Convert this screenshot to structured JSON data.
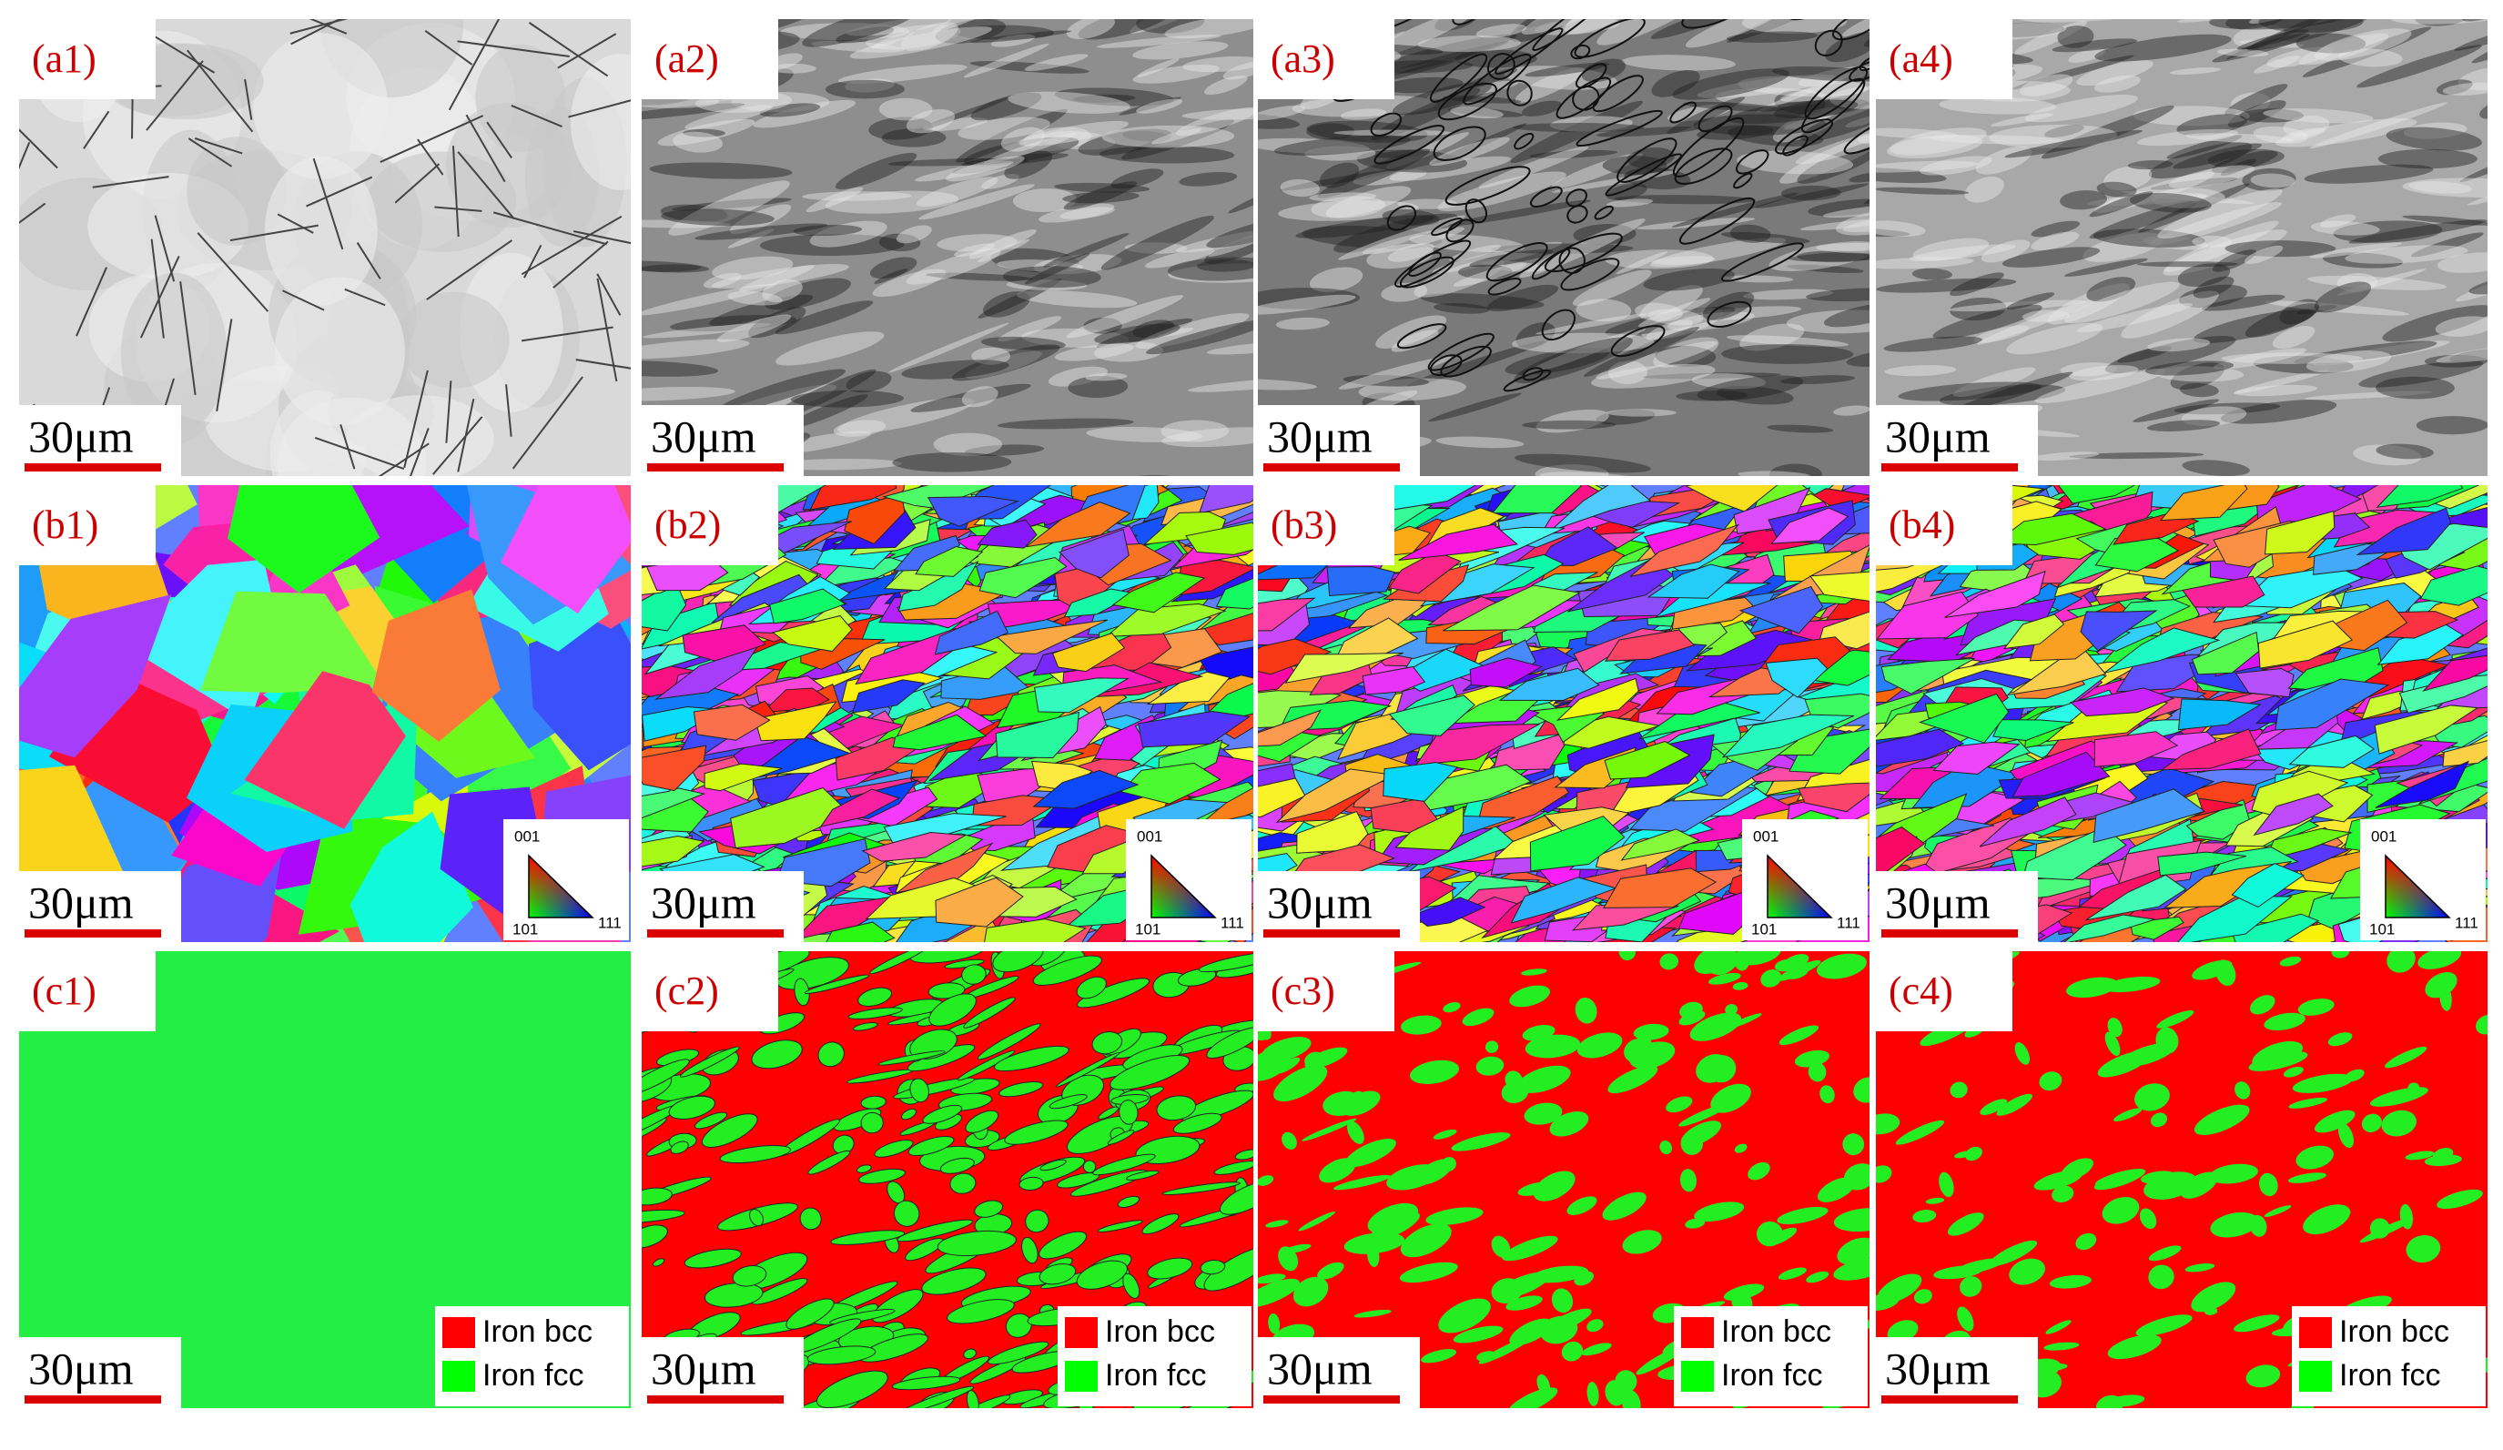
{
  "panels": [
    {
      "label": "(a1)",
      "scale_bar": "30μm"
    },
    {
      "label": "(a2)",
      "scale_bar": "30μm"
    },
    {
      "label": "(a3)",
      "scale_bar": "30μm"
    },
    {
      "label": "(a4)",
      "scale_bar": "30μm"
    },
    {
      "label": "(b1)",
      "scale_bar": "30μm"
    },
    {
      "label": "(b2)",
      "scale_bar": "30μm"
    },
    {
      "label": "(b3)",
      "scale_bar": "30μm"
    },
    {
      "label": "(b4)",
      "scale_bar": "30μm"
    },
    {
      "label": "(c1)",
      "scale_bar": "30μm"
    },
    {
      "label": "(c2)",
      "scale_bar": "30μm"
    },
    {
      "label": "(c3)",
      "scale_bar": "30μm"
    },
    {
      "label": "(c4)",
      "scale_bar": "30μm"
    }
  ],
  "ipf_legend": {
    "top": "001",
    "left": "101",
    "right": "111"
  },
  "phase_legend": [
    {
      "name": "Iron bcc",
      "color": "#ff0000"
    },
    {
      "name": "Iron fcc",
      "color": "#00ff00"
    }
  ]
}
